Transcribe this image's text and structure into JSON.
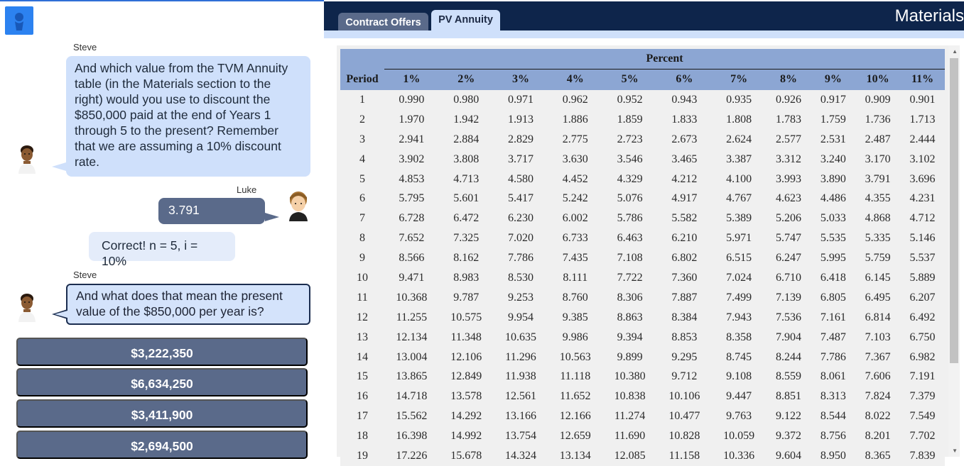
{
  "chat": {
    "steve_name": "Steve",
    "luke_name": "Luke",
    "truncated_name": "Steve",
    "messages": [
      {
        "speaker": "Steve",
        "text": "And which value from the TVM Annuity table (in the Materials section to the right) would you use to discount the $850,000 paid at the end of Years 1 through 5 to the present? Remember that we are assuming a 10% discount rate."
      },
      {
        "speaker": "Luke",
        "text": "3.791"
      },
      {
        "speaker": "feedback",
        "text": "Correct! n = 5, i = 10%"
      },
      {
        "speaker": "Steve",
        "text": "And what does that mean the present value of the $850,000 per year is?"
      }
    ],
    "choices": [
      "$3,222,350",
      "$6,634,250",
      "$3,411,900",
      "$2,694,500"
    ]
  },
  "materials": {
    "title": "Materials",
    "tabs": [
      {
        "label": "Contract Offers",
        "active": false
      },
      {
        "label": "PV Annuity",
        "active": true
      }
    ],
    "table": {
      "group_header": "Percent",
      "period_header": "Period",
      "rates": [
        "1%",
        "2%",
        "3%",
        "4%",
        "5%",
        "6%",
        "7%",
        "8%",
        "9%",
        "10%",
        "11%"
      ],
      "rows": [
        [
          "1",
          "0.990",
          "0.980",
          "0.971",
          "0.962",
          "0.952",
          "0.943",
          "0.935",
          "0.926",
          "0.917",
          "0.909",
          "0.901"
        ],
        [
          "2",
          "1.970",
          "1.942",
          "1.913",
          "1.886",
          "1.859",
          "1.833",
          "1.808",
          "1.783",
          "1.759",
          "1.736",
          "1.713"
        ],
        [
          "3",
          "2.941",
          "2.884",
          "2.829",
          "2.775",
          "2.723",
          "2.673",
          "2.624",
          "2.577",
          "2.531",
          "2.487",
          "2.444"
        ],
        [
          "4",
          "3.902",
          "3.808",
          "3.717",
          "3.630",
          "3.546",
          "3.465",
          "3.387",
          "3.312",
          "3.240",
          "3.170",
          "3.102"
        ],
        [
          "5",
          "4.853",
          "4.713",
          "4.580",
          "4.452",
          "4.329",
          "4.212",
          "4.100",
          "3.993",
          "3.890",
          "3.791",
          "3.696"
        ],
        [
          "6",
          "5.795",
          "5.601",
          "5.417",
          "5.242",
          "5.076",
          "4.917",
          "4.767",
          "4.623",
          "4.486",
          "4.355",
          "4.231"
        ],
        [
          "7",
          "6.728",
          "6.472",
          "6.230",
          "6.002",
          "5.786",
          "5.582",
          "5.389",
          "5.206",
          "5.033",
          "4.868",
          "4.712"
        ],
        [
          "8",
          "7.652",
          "7.325",
          "7.020",
          "6.733",
          "6.463",
          "6.210",
          "5.971",
          "5.747",
          "5.535",
          "5.335",
          "5.146"
        ],
        [
          "9",
          "8.566",
          "8.162",
          "7.786",
          "7.435",
          "7.108",
          "6.802",
          "6.515",
          "6.247",
          "5.995",
          "5.759",
          "5.537"
        ],
        [
          "10",
          "9.471",
          "8.983",
          "8.530",
          "8.111",
          "7.722",
          "7.360",
          "7.024",
          "6.710",
          "6.418",
          "6.145",
          "5.889"
        ],
        [
          "11",
          "10.368",
          "9.787",
          "9.253",
          "8.760",
          "8.306",
          "7.887",
          "7.499",
          "7.139",
          "6.805",
          "6.495",
          "6.207"
        ],
        [
          "12",
          "11.255",
          "10.575",
          "9.954",
          "9.385",
          "8.863",
          "8.384",
          "7.943",
          "7.536",
          "7.161",
          "6.814",
          "6.492"
        ],
        [
          "13",
          "12.134",
          "11.348",
          "10.635",
          "9.986",
          "9.394",
          "8.853",
          "8.358",
          "7.904",
          "7.487",
          "7.103",
          "6.750"
        ],
        [
          "14",
          "13.004",
          "12.106",
          "11.296",
          "10.563",
          "9.899",
          "9.295",
          "8.745",
          "8.244",
          "7.786",
          "7.367",
          "6.982"
        ],
        [
          "15",
          "13.865",
          "12.849",
          "11.938",
          "11.118",
          "10.380",
          "9.712",
          "9.108",
          "8.559",
          "8.061",
          "7.606",
          "7.191"
        ],
        [
          "16",
          "14.718",
          "13.578",
          "12.561",
          "11.652",
          "10.838",
          "10.106",
          "9.447",
          "8.851",
          "8.313",
          "7.824",
          "7.379"
        ],
        [
          "17",
          "15.562",
          "14.292",
          "13.166",
          "12.166",
          "11.274",
          "10.477",
          "9.763",
          "9.122",
          "8.544",
          "8.022",
          "7.549"
        ],
        [
          "18",
          "16.398",
          "14.992",
          "13.754",
          "12.659",
          "11.690",
          "10.828",
          "10.059",
          "9.372",
          "8.756",
          "8.201",
          "7.702"
        ],
        [
          "19",
          "17.226",
          "15.678",
          "14.324",
          "13.134",
          "12.085",
          "11.158",
          "10.336",
          "9.604",
          "8.950",
          "8.365",
          "7.839"
        ]
      ]
    }
  },
  "colors": {
    "header_navy": "#0e254b",
    "accent_blue": "#2c82f0",
    "bubble_light": "#cfe0fb",
    "slate": "#5a6a8a",
    "table_header": "#8ca6d3"
  },
  "icons": {
    "user_avatar": "person-silhouette-icon",
    "steve": "steve-face-icon",
    "luke": "luke-face-icon"
  }
}
